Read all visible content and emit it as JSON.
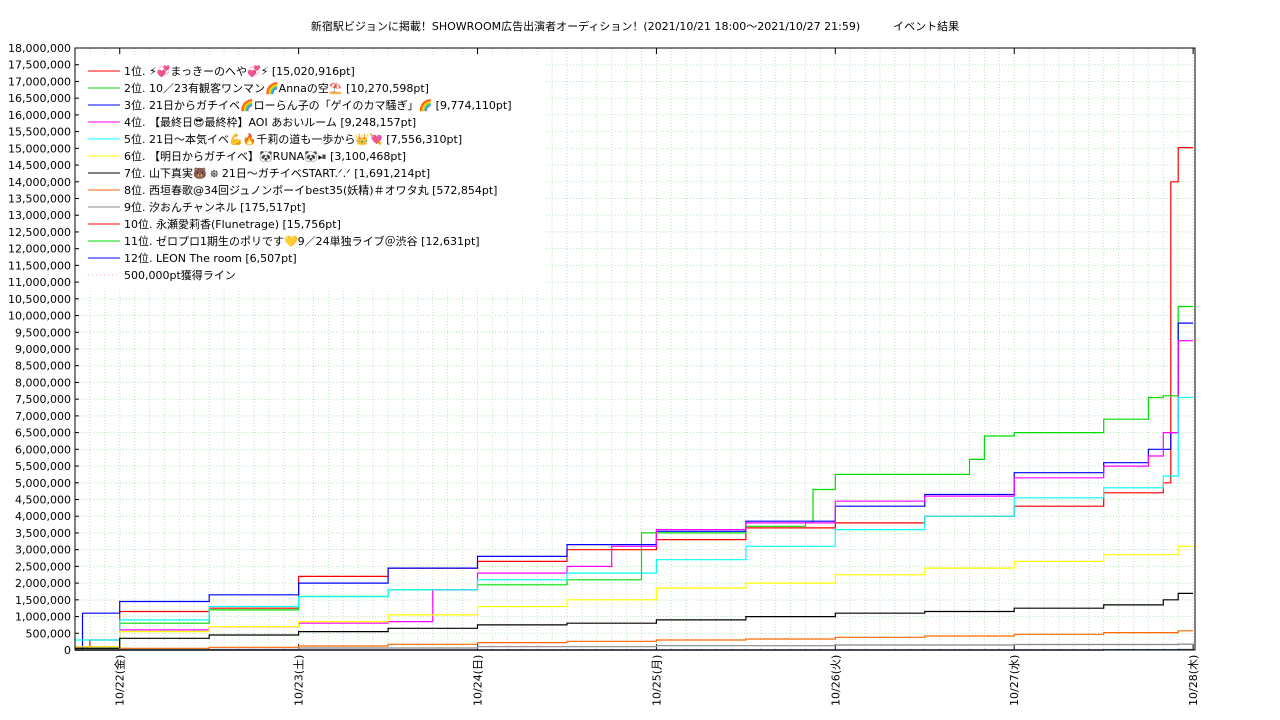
{
  "chart_data": {
    "type": "line",
    "title": "新宿駅ビジョンに掲載！SHOWROOM広告出演者オーディション！(2021/10/21 18:00〜2021/10/27 21:59)　　　イベント結果",
    "xlabel": "",
    "ylabel": "",
    "ylim": [
      0,
      18000000
    ],
    "y_ticks": [
      "0",
      "500,000",
      "1,000,000",
      "1,500,000",
      "2,000,000",
      "2,500,000",
      "3,000,000",
      "3,500,000",
      "4,000,000",
      "4,500,000",
      "5,000,000",
      "5,500,000",
      "6,000,000",
      "6,500,000",
      "7,000,000",
      "7,500,000",
      "8,000,000",
      "8,500,000",
      "9,000,000",
      "9,500,000",
      "10,000,000",
      "10,500,000",
      "11,000,000",
      "11,500,000",
      "12,000,000",
      "12,500,000",
      "13,000,000",
      "13,500,000",
      "14,000,000",
      "14,500,000",
      "15,000,000",
      "15,500,000",
      "16,000,000",
      "16,500,000",
      "17,000,000",
      "17,500,000",
      "18,000,000"
    ],
    "x_ticks": [
      "10/22(金)",
      "10/23(土)",
      "10/24(日)",
      "10/25(月)",
      "10/26(火)",
      "10/27(水)",
      "10/28(木)"
    ],
    "xlim": [
      "2021-10-21 18:00",
      "2021-10-28 00:15"
    ],
    "grid": true,
    "legend_position": "top-left",
    "series": [
      {
        "name": "1位. ⚡💞まっきーのへや💞⚡ [15,020,916pt]",
        "color": "#ff0000",
        "points": [
          [
            "2021-10-21 18:00",
            100000
          ],
          [
            "2021-10-21 20:00",
            300000
          ],
          [
            "2021-10-22 00:00",
            1150000
          ],
          [
            "2021-10-22 12:00",
            1250000
          ],
          [
            "2021-10-23 00:00",
            2200000
          ],
          [
            "2021-10-23 12:00",
            2450000
          ],
          [
            "2021-10-24 00:00",
            2650000
          ],
          [
            "2021-10-24 12:00",
            3000000
          ],
          [
            "2021-10-25 00:00",
            3300000
          ],
          [
            "2021-10-25 12:00",
            3650000
          ],
          [
            "2021-10-26 00:00",
            3800000
          ],
          [
            "2021-10-26 12:00",
            4000000
          ],
          [
            "2021-10-27 00:00",
            4300000
          ],
          [
            "2021-10-27 12:00",
            4700000
          ],
          [
            "2021-10-27 20:00",
            5000000
          ],
          [
            "2021-10-27 21:00",
            14000000
          ],
          [
            "2021-10-27 22:00",
            15020916
          ],
          [
            "2021-10-28 00:00",
            15020916
          ]
        ]
      },
      {
        "name": "2位. 10／23有観客ワンマン🌈Annaの空⛱️ [10,270,598pt]",
        "color": "#00dd00",
        "points": [
          [
            "2021-10-21 18:00",
            50000
          ],
          [
            "2021-10-22 00:00",
            800000
          ],
          [
            "2021-10-22 12:00",
            1200000
          ],
          [
            "2021-10-23 00:00",
            1600000
          ],
          [
            "2021-10-23 12:00",
            1800000
          ],
          [
            "2021-10-24 00:00",
            1950000
          ],
          [
            "2021-10-24 12:00",
            2100000
          ],
          [
            "2021-10-24 20:00",
            2100000
          ],
          [
            "2021-10-24 22:00",
            3500000
          ],
          [
            "2021-10-25 12:00",
            3700000
          ],
          [
            "2021-10-25 20:00",
            3800000
          ],
          [
            "2021-10-25 21:00",
            4800000
          ],
          [
            "2021-10-26 00:00",
            5250000
          ],
          [
            "2021-10-26 18:00",
            5700000
          ],
          [
            "2021-10-26 20:00",
            6400000
          ],
          [
            "2021-10-27 00:00",
            6500000
          ],
          [
            "2021-10-27 12:00",
            6900000
          ],
          [
            "2021-10-27 18:00",
            7550000
          ],
          [
            "2021-10-27 20:00",
            7600000
          ],
          [
            "2021-10-27 22:00",
            10270598
          ],
          [
            "2021-10-28 00:00",
            10270598
          ]
        ]
      },
      {
        "name": "3位. 21日からガチイベ🌈ローらん子の「ゲイのカマ騒ぎ」🌈 [9,774,110pt]",
        "color": "#0000ff",
        "points": [
          [
            "2021-10-21 18:00",
            0
          ],
          [
            "2021-10-21 19:00",
            1100000
          ],
          [
            "2021-10-22 00:00",
            1450000
          ],
          [
            "2021-10-22 12:00",
            1650000
          ],
          [
            "2021-10-23 00:00",
            2000000
          ],
          [
            "2021-10-23 12:00",
            2450000
          ],
          [
            "2021-10-24 00:00",
            2800000
          ],
          [
            "2021-10-24 12:00",
            3150000
          ],
          [
            "2021-10-25 00:00",
            3550000
          ],
          [
            "2021-10-25 12:00",
            3850000
          ],
          [
            "2021-10-26 00:00",
            4300000
          ],
          [
            "2021-10-26 12:00",
            4650000
          ],
          [
            "2021-10-27 00:00",
            5300000
          ],
          [
            "2021-10-27 12:00",
            5600000
          ],
          [
            "2021-10-27 18:00",
            6000000
          ],
          [
            "2021-10-27 21:00",
            6500000
          ],
          [
            "2021-10-27 22:00",
            9774110
          ],
          [
            "2021-10-28 00:00",
            9774110
          ]
        ]
      },
      {
        "name": "4位. 【最終日😎最終枠】AOI あおいルーム [9,248,157pt]",
        "color": "#ff00ff",
        "points": [
          [
            "2021-10-21 18:00",
            100000
          ],
          [
            "2021-10-22 00:00",
            600000
          ],
          [
            "2021-10-22 12:00",
            700000
          ],
          [
            "2021-10-23 00:00",
            800000
          ],
          [
            "2021-10-23 12:00",
            850000
          ],
          [
            "2021-10-23 18:00",
            1800000
          ],
          [
            "2021-10-24 00:00",
            2300000
          ],
          [
            "2021-10-24 12:00",
            2500000
          ],
          [
            "2021-10-24 18:00",
            3100000
          ],
          [
            "2021-10-25 00:00",
            3600000
          ],
          [
            "2021-10-25 12:00",
            3800000
          ],
          [
            "2021-10-26 00:00",
            4450000
          ],
          [
            "2021-10-26 12:00",
            4600000
          ],
          [
            "2021-10-27 00:00",
            5150000
          ],
          [
            "2021-10-27 12:00",
            5500000
          ],
          [
            "2021-10-27 18:00",
            5800000
          ],
          [
            "2021-10-27 20:00",
            6500000
          ],
          [
            "2021-10-27 22:00",
            9248157
          ],
          [
            "2021-10-28 00:00",
            9248157
          ]
        ]
      },
      {
        "name": "5位. 21日〜本気イベ💪🔥千莉の道も一歩から👑💘 [7,556,310pt]",
        "color": "#00ffff",
        "points": [
          [
            "2021-10-21 18:00",
            300000
          ],
          [
            "2021-10-22 00:00",
            900000
          ],
          [
            "2021-10-22 12:00",
            1300000
          ],
          [
            "2021-10-23 00:00",
            1600000
          ],
          [
            "2021-10-23 12:00",
            1800000
          ],
          [
            "2021-10-24 00:00",
            2100000
          ],
          [
            "2021-10-24 12:00",
            2300000
          ],
          [
            "2021-10-25 00:00",
            2700000
          ],
          [
            "2021-10-25 12:00",
            3100000
          ],
          [
            "2021-10-26 00:00",
            3600000
          ],
          [
            "2021-10-26 12:00",
            4000000
          ],
          [
            "2021-10-27 00:00",
            4550000
          ],
          [
            "2021-10-27 12:00",
            4850000
          ],
          [
            "2021-10-27 20:00",
            5200000
          ],
          [
            "2021-10-27 22:00",
            7556310
          ],
          [
            "2021-10-28 00:00",
            7556310
          ]
        ]
      },
      {
        "name": "6位. 【明日からガチイベ】🐼RUNA🐼⏯ [3,100,468pt]",
        "color": "#ffff00",
        "points": [
          [
            "2021-10-21 18:00",
            100000
          ],
          [
            "2021-10-22 00:00",
            550000
          ],
          [
            "2021-10-22 12:00",
            700000
          ],
          [
            "2021-10-23 00:00",
            850000
          ],
          [
            "2021-10-23 12:00",
            1050000
          ],
          [
            "2021-10-24 00:00",
            1300000
          ],
          [
            "2021-10-24 12:00",
            1500000
          ],
          [
            "2021-10-25 00:00",
            1850000
          ],
          [
            "2021-10-25 12:00",
            2000000
          ],
          [
            "2021-10-26 00:00",
            2250000
          ],
          [
            "2021-10-26 12:00",
            2450000
          ],
          [
            "2021-10-27 00:00",
            2650000
          ],
          [
            "2021-10-27 12:00",
            2850000
          ],
          [
            "2021-10-27 22:00",
            3100468
          ],
          [
            "2021-10-28 00:00",
            3100468
          ]
        ]
      },
      {
        "name": "7位. 山下真実🐻 ᪥ 21日〜ガチイベSTART.ᐟ.ᐟ [1,691,214pt]",
        "color": "#000000",
        "points": [
          [
            "2021-10-21 18:00",
            50000
          ],
          [
            "2021-10-22 00:00",
            350000
          ],
          [
            "2021-10-22 12:00",
            450000
          ],
          [
            "2021-10-23 00:00",
            550000
          ],
          [
            "2021-10-23 12:00",
            650000
          ],
          [
            "2021-10-24 00:00",
            750000
          ],
          [
            "2021-10-24 12:00",
            800000
          ],
          [
            "2021-10-25 00:00",
            900000
          ],
          [
            "2021-10-25 12:00",
            1000000
          ],
          [
            "2021-10-26 00:00",
            1100000
          ],
          [
            "2021-10-26 12:00",
            1150000
          ],
          [
            "2021-10-27 00:00",
            1250000
          ],
          [
            "2021-10-27 12:00",
            1350000
          ],
          [
            "2021-10-27 20:00",
            1500000
          ],
          [
            "2021-10-27 22:00",
            1691214
          ],
          [
            "2021-10-28 00:00",
            1691214
          ]
        ]
      },
      {
        "name": "8位. 西垣春歌@34回ジュノンボーイbest35(妖精)＃オワタ丸 [572,854pt]",
        "color": "#ff6600",
        "points": [
          [
            "2021-10-21 18:00",
            0
          ],
          [
            "2021-10-22 00:00",
            50000
          ],
          [
            "2021-10-22 12:00",
            80000
          ],
          [
            "2021-10-23 00:00",
            120000
          ],
          [
            "2021-10-23 12:00",
            170000
          ],
          [
            "2021-10-24 00:00",
            220000
          ],
          [
            "2021-10-24 12:00",
            260000
          ],
          [
            "2021-10-25 00:00",
            300000
          ],
          [
            "2021-10-25 12:00",
            330000
          ],
          [
            "2021-10-26 00:00",
            380000
          ],
          [
            "2021-10-26 12:00",
            420000
          ],
          [
            "2021-10-27 00:00",
            470000
          ],
          [
            "2021-10-27 12:00",
            520000
          ],
          [
            "2021-10-27 22:00",
            572854
          ],
          [
            "2021-10-28 00:00",
            572854
          ]
        ]
      },
      {
        "name": "9位. 汐おんチャンネル [175,517pt]",
        "color": "#888888",
        "points": [
          [
            "2021-10-21 18:00",
            0
          ],
          [
            "2021-10-22 00:00",
            20000
          ],
          [
            "2021-10-23 00:00",
            60000
          ],
          [
            "2021-10-24 00:00",
            100000
          ],
          [
            "2021-10-25 00:00",
            130000
          ],
          [
            "2021-10-26 00:00",
            150000
          ],
          [
            "2021-10-27 00:00",
            165000
          ],
          [
            "2021-10-27 22:00",
            175517
          ],
          [
            "2021-10-28 00:00",
            175517
          ]
        ]
      },
      {
        "name": "10位. 永瀬愛莉香(Flunetrage) [15,756pt]",
        "color": "#ff0000",
        "points": [
          [
            "2021-10-21 18:00",
            0
          ],
          [
            "2021-10-27 12:00",
            5000
          ],
          [
            "2021-10-27 22:00",
            15756
          ],
          [
            "2021-10-28 00:00",
            15756
          ]
        ]
      },
      {
        "name": "11位. ゼロプロ1期生のポリです💛9／24単独ライブ＠渋谷 [12,631pt]",
        "color": "#00dd00",
        "points": [
          [
            "2021-10-21 18:00",
            0
          ],
          [
            "2021-10-27 12:00",
            5000
          ],
          [
            "2021-10-27 22:00",
            12631
          ],
          [
            "2021-10-28 00:00",
            12631
          ]
        ]
      },
      {
        "name": "12位. LEON The room [6,507pt]",
        "color": "#0000ff",
        "points": [
          [
            "2021-10-21 18:00",
            0
          ],
          [
            "2021-10-27 12:00",
            3000
          ],
          [
            "2021-10-27 22:00",
            6507
          ],
          [
            "2021-10-28 00:00",
            6507
          ]
        ]
      },
      {
        "name": "500,000pt獲得ライン",
        "color": "#ffaaaa",
        "dashed": true,
        "points": []
      }
    ]
  }
}
